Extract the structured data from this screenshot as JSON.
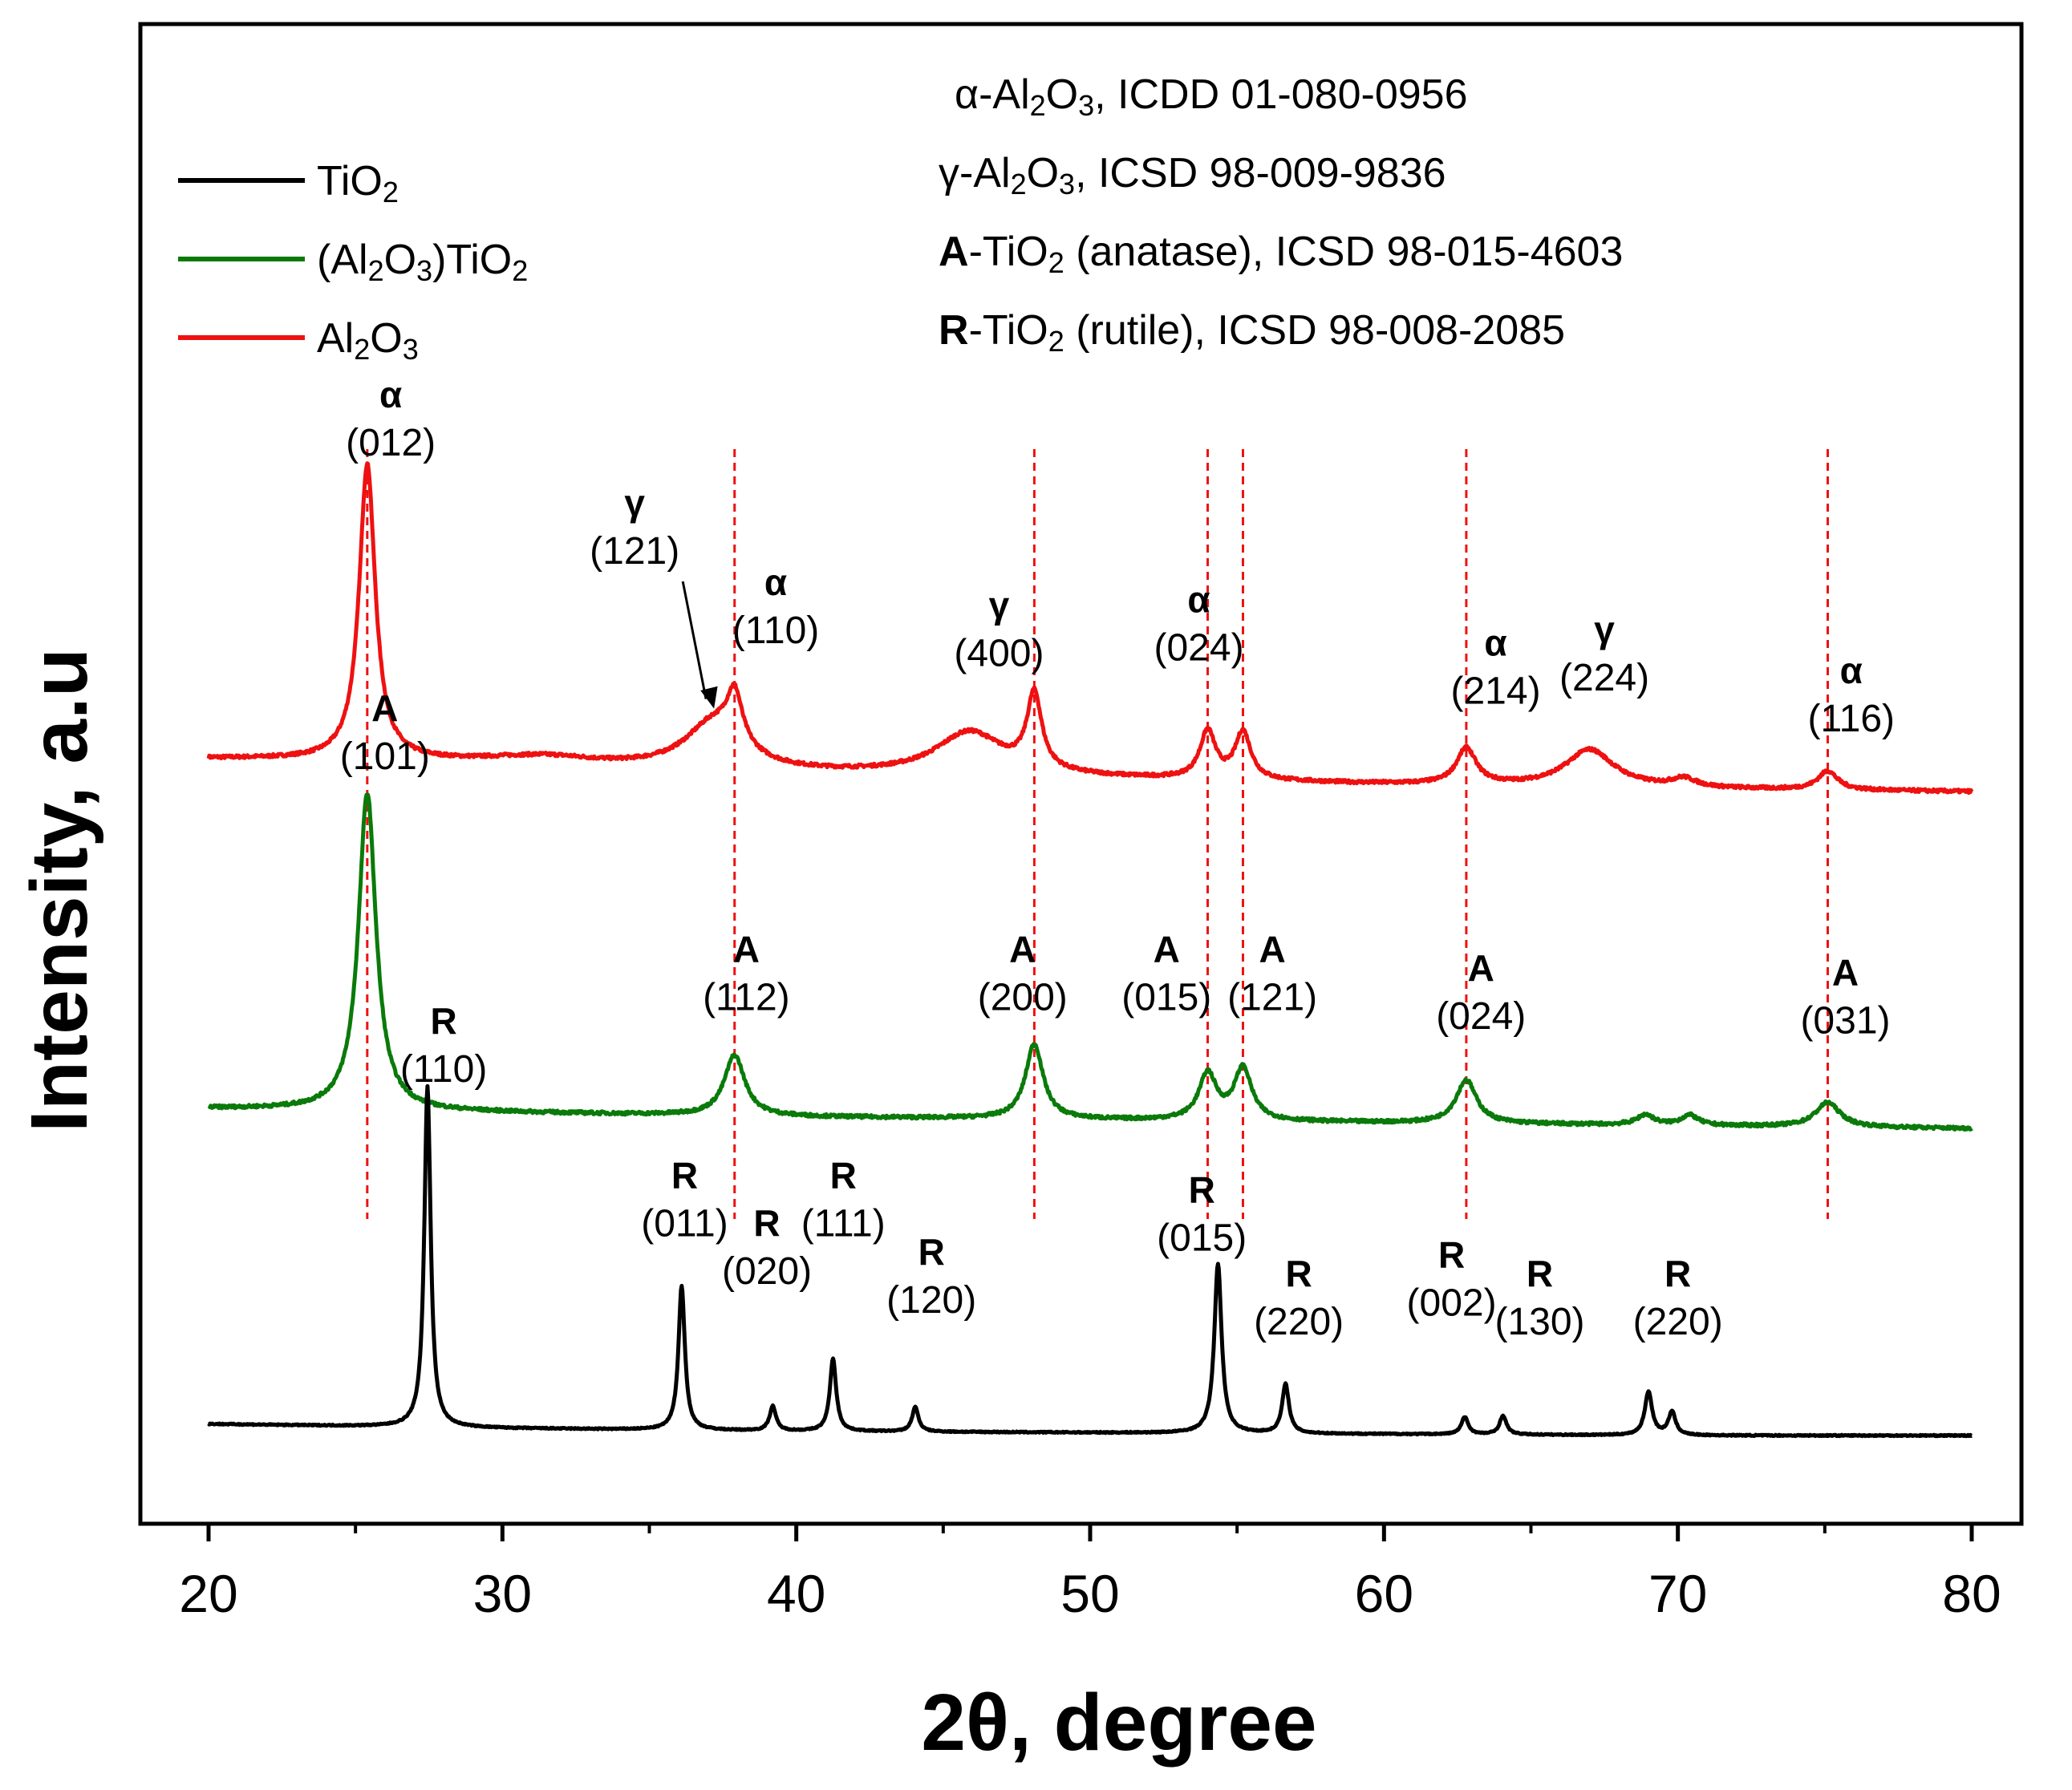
{
  "chart_data": {
    "type": "line",
    "xlabel": "2θ, degree",
    "ylabel": "Intensity, a.u",
    "xlim": [
      17.8,
      81.5
    ],
    "xticks": [
      20,
      30,
      40,
      50,
      60,
      70,
      80
    ],
    "grid": false,
    "legend_position": "top-left",
    "legend": [
      {
        "base": "TiO",
        "sub": "2",
        "color": "#000000"
      },
      {
        "parts": [
          [
            "(Al",
            ""
          ],
          [
            "2",
            "sub"
          ],
          [
            "O",
            ""
          ],
          [
            "3",
            "sub"
          ],
          [
            ")TiO",
            ""
          ],
          [
            "2",
            "sub"
          ]
        ],
        "color": "#0a7a0a"
      },
      {
        "parts": [
          [
            "Al",
            ""
          ],
          [
            "2",
            "sub"
          ],
          [
            "O",
            ""
          ],
          [
            "3",
            "sub"
          ]
        ],
        "color": "#ee1111"
      }
    ],
    "reference_info": [
      {
        "parts": [
          [
            "α-Al",
            ""
          ],
          [
            "2",
            "sub"
          ],
          [
            "O",
            ""
          ],
          [
            "3",
            "sub"
          ],
          [
            ", ICDD 01-080-0956",
            ""
          ]
        ]
      },
      {
        "parts": [
          [
            "γ-Al",
            ""
          ],
          [
            "2",
            "sub"
          ],
          [
            "O",
            ""
          ],
          [
            "3",
            "sub"
          ],
          [
            ", ICSD 98-009-9836",
            ""
          ]
        ]
      },
      {
        "parts": [
          [
            "A",
            "bold"
          ],
          [
            "-TiO",
            ""
          ],
          [
            "2",
            "sub"
          ],
          [
            " (anatase), ICSD 98-015-4603",
            ""
          ]
        ]
      },
      {
        "parts": [
          [
            "R",
            "bold"
          ],
          [
            "-TiO",
            ""
          ],
          [
            "2",
            "sub"
          ],
          [
            " (rutile), ICSD 98-008-2085",
            ""
          ]
        ]
      }
    ],
    "reference_lines_2theta": [
      25.4,
      37.9,
      48.1,
      54.0,
      55.2,
      62.8,
      75.1
    ],
    "series": [
      {
        "name": "Al2O3",
        "color": "#ee1111",
        "baseline": [
          [
            20,
            0.3
          ],
          [
            30,
            0.27
          ],
          [
            38,
            0.2
          ],
          [
            48,
            0.17
          ],
          [
            60,
            0.12
          ],
          [
            70,
            0.09
          ],
          [
            80,
            0.07
          ]
        ],
        "peaks": [
          {
            "x": 25.4,
            "h": 2.05,
            "w": 0.33
          },
          {
            "x": 31.5,
            "h": 0.05,
            "w": 2.0
          },
          {
            "x": 37.2,
            "h": 0.33,
            "w": 1.2
          },
          {
            "x": 37.9,
            "h": 0.35,
            "w": 0.32
          },
          {
            "x": 45.9,
            "h": 0.3,
            "w": 1.4
          },
          {
            "x": 48.1,
            "h": 0.52,
            "w": 0.3
          },
          {
            "x": 54.0,
            "h": 0.33,
            "w": 0.32
          },
          {
            "x": 55.2,
            "h": 0.33,
            "w": 0.32
          },
          {
            "x": 62.8,
            "h": 0.25,
            "w": 0.4
          },
          {
            "x": 67.0,
            "h": 0.26,
            "w": 1.0
          },
          {
            "x": 70.2,
            "h": 0.06,
            "w": 0.5
          },
          {
            "x": 75.1,
            "h": 0.13,
            "w": 0.4
          }
        ],
        "noise": 0.022
      },
      {
        "name": "(Al2O3)TiO2",
        "color": "#0a7a0a",
        "baseline": [
          [
            20,
            0.1
          ],
          [
            30,
            0.07
          ],
          [
            40,
            0.04
          ],
          [
            50,
            0.02
          ],
          [
            60,
            0.0
          ],
          [
            70,
            -0.02
          ],
          [
            80,
            -0.04
          ]
        ],
        "peaks": [
          {
            "x": 25.4,
            "h": 2.2,
            "w": 0.36
          },
          {
            "x": 37.9,
            "h": 0.42,
            "w": 0.42
          },
          {
            "x": 48.1,
            "h": 0.52,
            "w": 0.36
          },
          {
            "x": 54.0,
            "h": 0.32,
            "w": 0.36
          },
          {
            "x": 55.2,
            "h": 0.36,
            "w": 0.36
          },
          {
            "x": 62.8,
            "h": 0.3,
            "w": 0.42
          },
          {
            "x": 68.9,
            "h": 0.07,
            "w": 0.35
          },
          {
            "x": 70.4,
            "h": 0.07,
            "w": 0.35
          },
          {
            "x": 75.1,
            "h": 0.17,
            "w": 0.5
          }
        ],
        "noise": 0.022
      },
      {
        "name": "TiO2",
        "color": "#000000",
        "baseline": [
          [
            20,
            0.08
          ],
          [
            30,
            0.05
          ],
          [
            40,
            0.03
          ],
          [
            50,
            0.02
          ],
          [
            60,
            0.01
          ],
          [
            70,
            0.0
          ],
          [
            80,
            0.0
          ]
        ],
        "peaks": [
          {
            "x": 27.45,
            "h": 2.36,
            "w": 0.13
          },
          {
            "x": 36.1,
            "h": 1.0,
            "w": 0.13
          },
          {
            "x": 39.2,
            "h": 0.17,
            "w": 0.13
          },
          {
            "x": 41.25,
            "h": 0.5,
            "w": 0.13
          },
          {
            "x": 44.05,
            "h": 0.17,
            "w": 0.13
          },
          {
            "x": 54.35,
            "h": 1.17,
            "w": 0.15
          },
          {
            "x": 56.65,
            "h": 0.34,
            "w": 0.14
          },
          {
            "x": 62.75,
            "h": 0.12,
            "w": 0.14
          },
          {
            "x": 64.05,
            "h": 0.13,
            "w": 0.14
          },
          {
            "x": 69.0,
            "h": 0.3,
            "w": 0.15
          },
          {
            "x": 69.8,
            "h": 0.16,
            "w": 0.15
          }
        ],
        "noise": 0.008
      }
    ],
    "annotations": [
      {
        "letter": "α",
        "hkl": "(012)",
        "x": 26.2,
        "series": "Al2O3",
        "above": 2.4
      },
      {
        "letter": "γ",
        "hkl": "(121)",
        "x": 34.5,
        "series": "Al2O3",
        "above": 1.65,
        "arrow_to": 37.2
      },
      {
        "letter": "α",
        "hkl": "(110)",
        "x": 39.3,
        "series": "Al2O3",
        "above": 1.1
      },
      {
        "letter": "γ",
        "hkl": "(400)",
        "x": 46.9,
        "series": "Al2O3",
        "above": 0.88
      },
      {
        "letter": "α",
        "hkl": "(024)",
        "x": 53.7,
        "series": "Al2O3",
        "above": 0.98
      },
      {
        "letter": "α",
        "hkl": "(214)",
        "x": 63.8,
        "series": "Al2O3",
        "above": 0.68
      },
      {
        "letter": "γ",
        "hkl": "(224)",
        "x": 67.5,
        "series": "Al2O3",
        "above": 0.68
      },
      {
        "letter": "α",
        "hkl": "(116)",
        "x": 75.9,
        "series": "Al2O3",
        "above": 0.45
      },
      {
        "letter": "A",
        "hkl": "(101)",
        "x": 26.0,
        "series": "(Al2O3)TiO2",
        "above": 2.45
      },
      {
        "letter": "A",
        "hkl": "(112)",
        "x": 38.3,
        "series": "(Al2O3)TiO2",
        "above": 0.78
      },
      {
        "letter": "A",
        "hkl": "(200)",
        "x": 47.7,
        "series": "(Al2O3)TiO2",
        "above": 0.78
      },
      {
        "letter": "A",
        "hkl": "(015)",
        "x": 52.6,
        "series": "(Al2O3)TiO2",
        "above": 0.78
      },
      {
        "letter": "A",
        "hkl": "(121)",
        "x": 56.2,
        "series": "(Al2O3)TiO2",
        "above": 0.78
      },
      {
        "letter": "A",
        "hkl": "(024)",
        "x": 63.3,
        "series": "(Al2O3)TiO2",
        "above": 0.65
      },
      {
        "letter": "A",
        "hkl": "(031)",
        "x": 75.7,
        "series": "(Al2O3)TiO2",
        "above": 0.62
      },
      {
        "letter": "R",
        "hkl": "(110)",
        "x": 28.0,
        "series": "TiO2",
        "above": 2.45
      },
      {
        "letter": "R",
        "hkl": "(011)",
        "x": 36.2,
        "series": "TiO2",
        "above": 1.38
      },
      {
        "letter": "R",
        "hkl": "(020)",
        "x": 39.0,
        "series": "TiO2",
        "above": 1.05
      },
      {
        "letter": "R",
        "hkl": "(111)",
        "x": 41.6,
        "series": "TiO2",
        "above": 1.38
      },
      {
        "letter": "R",
        "hkl": "(120)",
        "x": 44.6,
        "series": "TiO2",
        "above": 0.85
      },
      {
        "letter": "R",
        "hkl": "(015)",
        "x": 53.8,
        "series": "TiO2",
        "above": 1.28
      },
      {
        "letter": "R",
        "hkl": "(220)",
        "x": 57.1,
        "series": "TiO2",
        "above": 0.7
      },
      {
        "letter": "R",
        "hkl": "(002)",
        "x": 62.3,
        "series": "TiO2",
        "above": 0.83
      },
      {
        "letter": "R",
        "hkl": "(130)",
        "x": 65.3,
        "series": "TiO2",
        "above": 0.7
      },
      {
        "letter": "R",
        "hkl": "(220)",
        "x": 70.0,
        "series": "TiO2",
        "above": 0.7
      }
    ]
  }
}
